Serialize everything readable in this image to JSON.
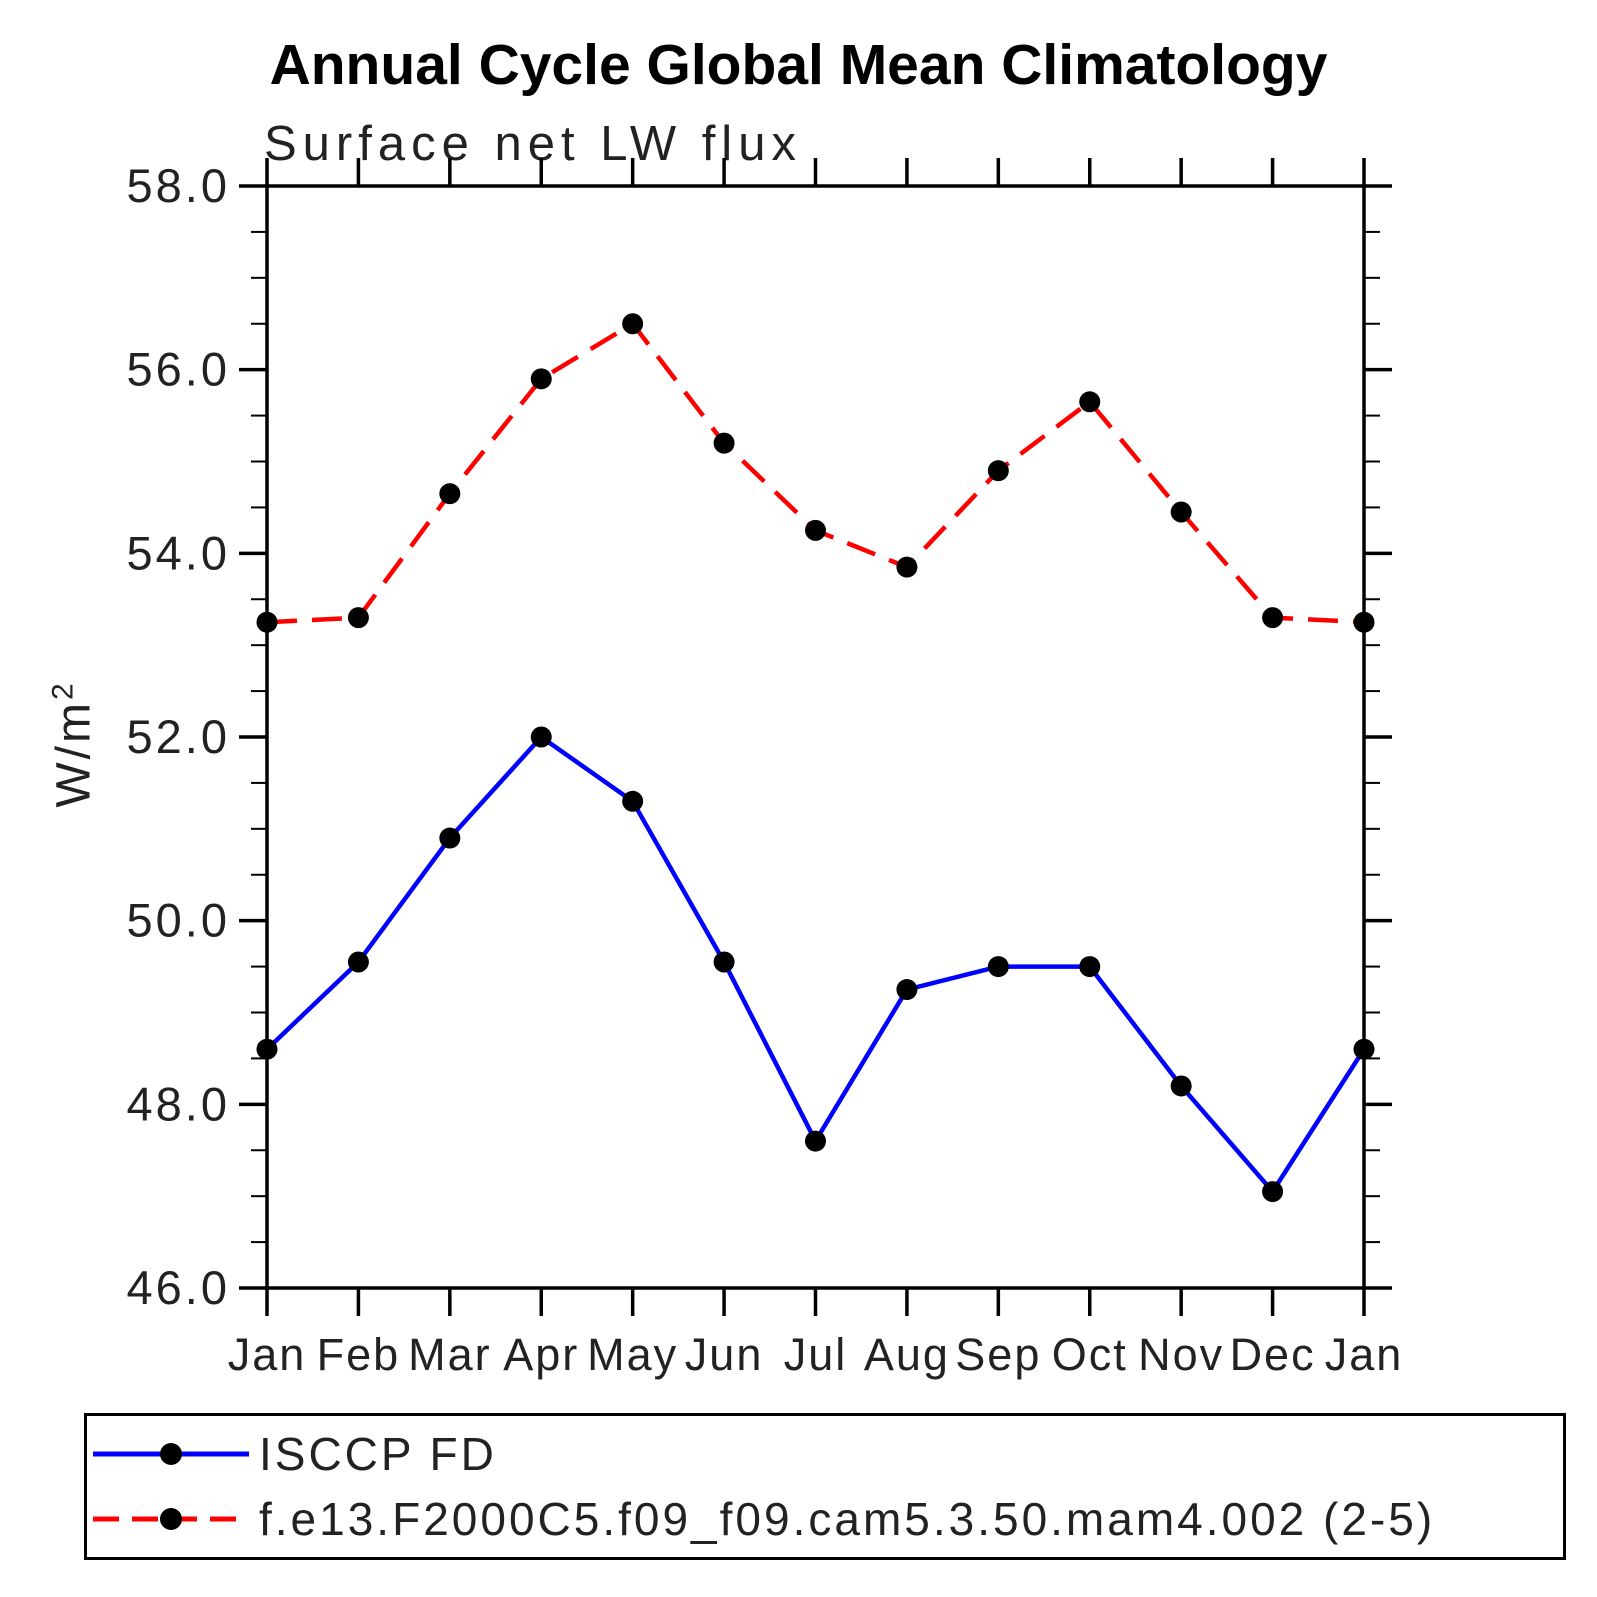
{
  "title": "Annual Cycle Global Mean Climatology",
  "subtitle": "Surface net LW flux",
  "y_axis": {
    "label_base": "W/m",
    "label_exponent": "2"
  },
  "chart_data": {
    "type": "line",
    "title": "Annual Cycle Global Mean Climatology",
    "subtitle": "Surface net LW flux",
    "ylabel": "W/m²",
    "xlabel": "",
    "categories": [
      "Jan",
      "Feb",
      "Mar",
      "Apr",
      "May",
      "Jun",
      "Jul",
      "Aug",
      "Sep",
      "Oct",
      "Nov",
      "Dec",
      "Jan"
    ],
    "ylim": [
      46.0,
      58.0
    ],
    "ytick_labels": [
      "58.0",
      "56.0",
      "54.0",
      "52.0",
      "50.0",
      "48.0",
      "46.0"
    ],
    "ytick_values": [
      58.0,
      56.0,
      54.0,
      52.0,
      50.0,
      48.0,
      46.0
    ],
    "ytick_interval_major": 2.0,
    "ytick_interval_minor": 0.5,
    "grid": false,
    "legend_position": "bottom-box",
    "marker_color": "#000000",
    "series": [
      {
        "name": "ISCCP FD",
        "color": "#0000ff",
        "style": "solid",
        "marker": "black-dot",
        "values": [
          48.6,
          49.55,
          50.9,
          52.0,
          51.3,
          49.55,
          47.6,
          49.25,
          49.5,
          49.5,
          48.2,
          47.05,
          48.6
        ]
      },
      {
        "name": "f.e13.F2000C5.f09_f09.cam5.3.50.mam4.002 (2-5)",
        "color": "#ff0000",
        "style": "dashed",
        "marker": "black-dot",
        "values": [
          53.25,
          53.3,
          54.65,
          55.9,
          56.5,
          55.2,
          54.25,
          53.85,
          54.9,
          55.65,
          54.45,
          53.3,
          53.25
        ]
      }
    ]
  }
}
